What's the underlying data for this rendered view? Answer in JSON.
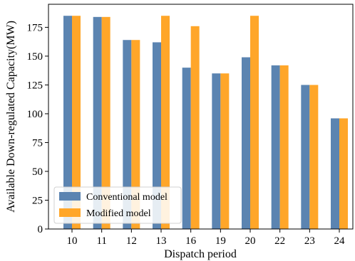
{
  "chart_data": {
    "type": "bar",
    "xlabel": "Dispatch period",
    "ylabel": "Available Down-regulated Capacity(MW)",
    "categories": [
      "10",
      "11",
      "12",
      "13",
      "16",
      "19",
      "20",
      "22",
      "23",
      "24"
    ],
    "series": [
      {
        "name": "Conventional model",
        "color": "#5b84b1",
        "values": [
          185,
          184,
          164,
          162,
          140,
          135,
          149,
          142,
          125,
          96
        ]
      },
      {
        "name": "Modified model",
        "color": "#ffa629",
        "values": [
          185,
          184,
          164,
          185,
          176,
          135,
          185,
          142,
          125,
          96
        ]
      }
    ],
    "ylim": [
      0,
      195
    ],
    "yticks": [
      0,
      25,
      50,
      75,
      100,
      125,
      150,
      175
    ],
    "grid": false,
    "legend_position": "lower-left"
  }
}
